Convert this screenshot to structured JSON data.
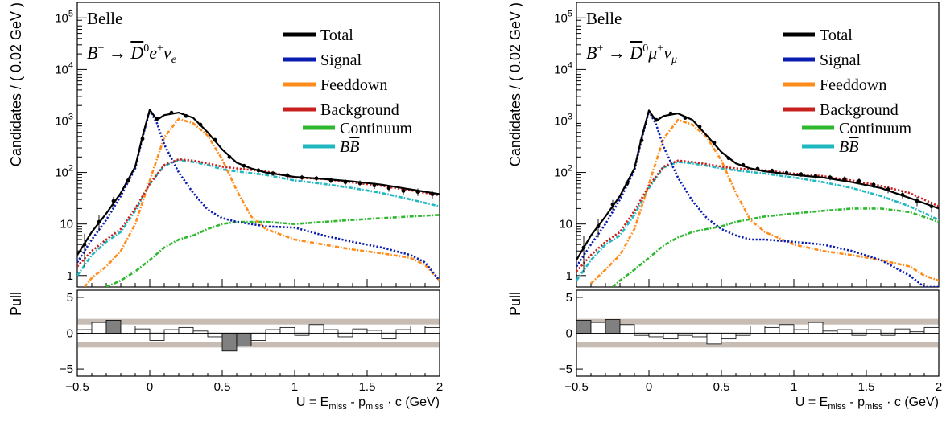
{
  "chart_data": [
    {
      "type": "line",
      "experiment": "Belle",
      "decay": {
        "lead": "B",
        "lead_sup": "+",
        "arrow": "→",
        "dmeson": "D",
        "dmeson_sup": "0",
        "lepton": "e",
        "lepton_sup": "+",
        "nu": "ν",
        "nu_sub": "e"
      },
      "ylabel": "Candidates / ( 0.02 GeV )",
      "pull_label": "Pull",
      "xlabel": {
        "u": "U = E",
        "emiss": "miss",
        "mid": " - p",
        "pmiss": "miss",
        "end": " · c (GeV)"
      },
      "xlim": [
        -0.5,
        2.0
      ],
      "ylim_log": [
        0.6,
        200000
      ],
      "y_scale": "log",
      "pull_ylim": [
        -6,
        6
      ],
      "pull_band": 2,
      "x_ticks": [
        "-0.5",
        "0",
        "0.5",
        "1",
        "1.5",
        "2"
      ],
      "y_ticks": [
        {
          "v": 1,
          "label": "1"
        },
        {
          "v": 10,
          "label": "10"
        },
        {
          "v": 100,
          "label": "10",
          "exp": "2"
        },
        {
          "v": 1000,
          "label": "10",
          "exp": "3"
        },
        {
          "v": 10000,
          "label": "10",
          "exp": "4"
        },
        {
          "v": 100000,
          "label": "10",
          "exp": "5"
        }
      ],
      "pull_ticks": [
        {
          "v": 5,
          "label": "5"
        },
        {
          "v": 0,
          "label": "0"
        },
        {
          "v": -5,
          "label": "−5"
        }
      ],
      "legend": [
        {
          "name": "Total",
          "color": "#000000"
        },
        {
          "name": "Signal",
          "color": "#0b1cb0"
        },
        {
          "name": "Feeddown",
          "color": "#ff8c1a"
        },
        {
          "name": "Background",
          "color": "#c8201e"
        },
        {
          "name": "Continuum",
          "color": "#2db82d"
        },
        {
          "name": "BB",
          "overline": true,
          "color": "#20b8c0"
        }
      ],
      "series": [
        {
          "name": "Total",
          "color": "#000000",
          "style": "solid",
          "x": [
            -0.5,
            -0.4,
            -0.3,
            -0.2,
            -0.1,
            -0.05,
            0.0,
            0.05,
            0.1,
            0.2,
            0.3,
            0.4,
            0.5,
            0.6,
            0.7,
            0.8,
            1.0,
            1.2,
            1.4,
            1.6,
            1.8,
            2.0
          ],
          "y": [
            2.5,
            7,
            16,
            40,
            130,
            500,
            1650,
            1050,
            1300,
            1450,
            1150,
            600,
            280,
            155,
            120,
            100,
            82,
            75,
            67,
            58,
            47,
            38
          ]
        },
        {
          "name": "Signal",
          "color": "#0b1cb0",
          "style": "dotted",
          "x": [
            -0.5,
            -0.4,
            -0.3,
            -0.2,
            -0.1,
            -0.05,
            0.0,
            0.05,
            0.1,
            0.2,
            0.3,
            0.4,
            0.5,
            0.6,
            0.7,
            0.8,
            1.0,
            1.2,
            1.4,
            1.6,
            1.8,
            1.9,
            2.0
          ],
          "y": [
            1.8,
            5,
            12,
            35,
            120,
            480,
            1600,
            900,
            350,
            100,
            40,
            19,
            13,
            11,
            10,
            9,
            8.5,
            6,
            4.5,
            3.5,
            2.5,
            1.8,
            0.8
          ]
        },
        {
          "name": "Feeddown",
          "color": "#ff8c1a",
          "style": "dashdot",
          "x": [
            -0.45,
            -0.4,
            -0.3,
            -0.2,
            -0.1,
            0.0,
            0.1,
            0.2,
            0.3,
            0.4,
            0.5,
            0.6,
            0.7,
            0.8,
            1.0,
            1.2,
            1.4,
            1.6,
            1.8,
            1.9,
            2.0
          ],
          "y": [
            0.6,
            0.9,
            1.5,
            3,
            10,
            70,
            480,
            1100,
            900,
            520,
            180,
            45,
            14,
            8,
            5,
            4,
            3.2,
            2.7,
            2.2,
            1.6,
            0.8
          ]
        },
        {
          "name": "Background",
          "color": "#c8201e",
          "style": "dotted",
          "x": [
            -0.5,
            -0.4,
            -0.3,
            -0.2,
            -0.1,
            0.0,
            0.1,
            0.2,
            0.3,
            0.4,
            0.5,
            0.6,
            0.8,
            1.0,
            1.2,
            1.4,
            1.6,
            1.8,
            2.0
          ],
          "y": [
            1.5,
            3,
            5,
            8,
            20,
            60,
            140,
            180,
            170,
            150,
            130,
            120,
            105,
            80,
            75,
            64,
            55,
            45,
            36
          ]
        },
        {
          "name": "Continuum",
          "color": "#2db82d",
          "style": "dashdot",
          "x": [
            -0.3,
            -0.2,
            -0.1,
            0.0,
            0.1,
            0.2,
            0.3,
            0.4,
            0.5,
            0.6,
            0.8,
            1.0,
            1.2,
            1.4,
            1.6,
            1.8,
            2.0
          ],
          "y": [
            0.6,
            0.8,
            1.2,
            2,
            3.5,
            5,
            6,
            8,
            10,
            11,
            11,
            10,
            11,
            12,
            13,
            14,
            15
          ]
        },
        {
          "name": "BB",
          "color": "#20b8c0",
          "style": "dashdot",
          "x": [
            -0.5,
            -0.4,
            -0.3,
            -0.2,
            -0.1,
            0.0,
            0.1,
            0.2,
            0.3,
            0.4,
            0.5,
            0.6,
            0.8,
            1.0,
            1.2,
            1.4,
            1.6,
            1.8,
            2.0
          ],
          "y": [
            1,
            2.5,
            4.5,
            7,
            18,
            60,
            135,
            175,
            160,
            140,
            115,
            105,
            90,
            70,
            60,
            50,
            40,
            30,
            22
          ]
        }
      ],
      "data_points": {
        "x": [
          -0.45,
          -0.35,
          -0.25,
          -0.15,
          -0.05,
          0.05,
          0.15,
          0.25,
          0.35,
          0.45,
          0.55,
          0.65,
          0.75,
          0.85,
          0.95,
          1.05,
          1.15,
          1.25,
          1.35,
          1.45,
          1.55,
          1.65,
          1.75,
          1.85,
          1.95
        ],
        "y": [
          4,
          11,
          28,
          70,
          450,
          1100,
          1450,
          1250,
          850,
          430,
          200,
          135,
          110,
          96,
          88,
          80,
          77,
          71,
          65,
          62,
          56,
          50,
          44,
          42,
          38
        ]
      },
      "pull": {
        "x": [
          -0.45,
          -0.35,
          -0.25,
          -0.15,
          -0.05,
          0.05,
          0.15,
          0.25,
          0.35,
          0.45,
          0.55,
          0.65,
          0.75,
          0.85,
          0.95,
          1.05,
          1.15,
          1.25,
          1.35,
          1.45,
          1.55,
          1.65,
          1.75,
          1.85,
          1.95
        ],
        "values": [
          0.5,
          1.5,
          1.8,
          1.0,
          0.6,
          -1.0,
          0.5,
          0.8,
          0.3,
          -0.5,
          -2.5,
          -1.8,
          -1.0,
          0.5,
          0.8,
          -0.3,
          1.2,
          0.5,
          -0.5,
          0.6,
          0.4,
          -0.8,
          0.5,
          1.0,
          0.8
        ]
      }
    },
    {
      "type": "line",
      "experiment": "Belle",
      "decay": {
        "lead": "B",
        "lead_sup": "+",
        "arrow": "→",
        "dmeson": "D",
        "dmeson_sup": "0",
        "lepton": "μ",
        "lepton_sup": "+",
        "nu": "ν",
        "nu_sub": "μ"
      },
      "ylabel": "Candidates / ( 0.02 GeV )",
      "pull_label": "Pull",
      "xlabel": {
        "u": "U = E",
        "emiss": "miss",
        "mid": " - p",
        "pmiss": "miss",
        "end": " · c (GeV)"
      },
      "xlim": [
        -0.5,
        2.0
      ],
      "ylim_log": [
        0.6,
        200000
      ],
      "y_scale": "log",
      "pull_ylim": [
        -6,
        6
      ],
      "pull_band": 2,
      "x_ticks": [
        "-0.5",
        "0",
        "0.5",
        "1",
        "1.5",
        "2"
      ],
      "y_ticks": [
        {
          "v": 1,
          "label": "1"
        },
        {
          "v": 10,
          "label": "10"
        },
        {
          "v": 100,
          "label": "10",
          "exp": "2"
        },
        {
          "v": 1000,
          "label": "10",
          "exp": "3"
        },
        {
          "v": 10000,
          "label": "10",
          "exp": "4"
        },
        {
          "v": 100000,
          "label": "10",
          "exp": "5"
        }
      ],
      "pull_ticks": [
        {
          "v": 5,
          "label": "5"
        },
        {
          "v": 0,
          "label": "0"
        },
        {
          "v": -5,
          "label": "−5"
        }
      ],
      "legend": [
        {
          "name": "Total",
          "color": "#000000"
        },
        {
          "name": "Signal",
          "color": "#0b1cb0"
        },
        {
          "name": "Feeddown",
          "color": "#ff8c1a"
        },
        {
          "name": "Background",
          "color": "#c8201e"
        },
        {
          "name": "Continuum",
          "color": "#2db82d"
        },
        {
          "name": "BB",
          "overline": true,
          "color": "#20b8c0"
        }
      ],
      "series": [
        {
          "name": "Total",
          "color": "#000000",
          "style": "solid",
          "x": [
            -0.5,
            -0.4,
            -0.3,
            -0.2,
            -0.1,
            -0.05,
            0.0,
            0.05,
            0.1,
            0.2,
            0.3,
            0.4,
            0.5,
            0.6,
            0.7,
            0.8,
            1.0,
            1.2,
            1.4,
            1.6,
            1.8,
            2.0
          ],
          "y": [
            2,
            6,
            14,
            35,
            120,
            480,
            1600,
            1000,
            1250,
            1400,
            1050,
            520,
            250,
            150,
            120,
            105,
            90,
            80,
            65,
            50,
            32,
            20
          ]
        },
        {
          "name": "Signal",
          "color": "#0b1cb0",
          "style": "dotted",
          "x": [
            -0.5,
            -0.4,
            -0.3,
            -0.2,
            -0.1,
            -0.05,
            0.0,
            0.05,
            0.1,
            0.2,
            0.3,
            0.4,
            0.5,
            0.6,
            0.7,
            0.8,
            1.0,
            1.2,
            1.4,
            1.6,
            1.8,
            1.9,
            2.0
          ],
          "y": [
            1.5,
            4,
            10,
            30,
            110,
            450,
            1550,
            850,
            320,
            80,
            28,
            13,
            8,
            6,
            5,
            5,
            4.5,
            4,
            3,
            2,
            1,
            0.6,
            0.5
          ]
        },
        {
          "name": "Feeddown",
          "color": "#ff8c1a",
          "style": "dashdot",
          "x": [
            -0.4,
            -0.3,
            -0.2,
            -0.1,
            0.0,
            0.1,
            0.2,
            0.3,
            0.4,
            0.5,
            0.6,
            0.7,
            0.8,
            1.0,
            1.2,
            1.4,
            1.6,
            1.8,
            1.9,
            2.0
          ],
          "y": [
            0.7,
            1.3,
            2.5,
            8,
            60,
            450,
            1050,
            850,
            480,
            170,
            40,
            12,
            7,
            4,
            3,
            2.5,
            2,
            1.5,
            1,
            0.8
          ]
        },
        {
          "name": "Background",
          "color": "#c8201e",
          "style": "dotted",
          "x": [
            -0.5,
            -0.4,
            -0.3,
            -0.2,
            -0.1,
            0.0,
            0.1,
            0.2,
            0.3,
            0.4,
            0.5,
            0.6,
            0.8,
            1.0,
            1.2,
            1.4,
            1.6,
            1.8,
            2.0
          ],
          "y": [
            1.2,
            2.5,
            4.5,
            7,
            18,
            55,
            130,
            170,
            160,
            145,
            130,
            120,
            110,
            95,
            85,
            70,
            55,
            40,
            22
          ]
        },
        {
          "name": "Continuum",
          "color": "#2db82d",
          "style": "dashdot",
          "x": [
            -0.25,
            -0.2,
            -0.1,
            0.0,
            0.1,
            0.2,
            0.3,
            0.4,
            0.5,
            0.6,
            0.8,
            1.0,
            1.2,
            1.4,
            1.6,
            1.8,
            2.0
          ],
          "y": [
            0.6,
            0.8,
            1.3,
            2.2,
            3.8,
            5.5,
            7,
            8,
            9,
            11,
            14,
            16,
            18,
            20,
            20,
            17,
            11
          ]
        },
        {
          "name": "BB",
          "color": "#20b8c0",
          "style": "dashdot",
          "x": [
            -0.5,
            -0.4,
            -0.3,
            -0.2,
            -0.1,
            0.0,
            0.1,
            0.2,
            0.3,
            0.4,
            0.5,
            0.6,
            0.8,
            1.0,
            1.2,
            1.4,
            1.6,
            1.8,
            2.0
          ],
          "y": [
            0.8,
            2,
            4,
            6,
            15,
            50,
            125,
            160,
            150,
            135,
            120,
            110,
            95,
            80,
            65,
            50,
            35,
            22,
            12
          ]
        }
      ],
      "data_points": {
        "x": [
          -0.45,
          -0.35,
          -0.25,
          -0.15,
          -0.05,
          0.05,
          0.15,
          0.25,
          0.35,
          0.45,
          0.55,
          0.65,
          0.75,
          0.85,
          0.95,
          1.05,
          1.15,
          1.25,
          1.35,
          1.45,
          1.55,
          1.65,
          1.75,
          1.85,
          1.95
        ],
        "y": [
          3.5,
          9,
          24,
          62,
          420,
          1050,
          1400,
          1150,
          780,
          380,
          190,
          140,
          118,
          108,
          98,
          92,
          85,
          80,
          75,
          68,
          58,
          47,
          37,
          28,
          22
        ]
      },
      "pull": {
        "x": [
          -0.45,
          -0.35,
          -0.25,
          -0.15,
          -0.05,
          0.05,
          0.15,
          0.25,
          0.35,
          0.45,
          0.55,
          0.65,
          0.75,
          0.85,
          0.95,
          1.05,
          1.15,
          1.25,
          1.35,
          1.45,
          1.55,
          1.65,
          1.75,
          1.85,
          1.95
        ],
        "values": [
          1.8,
          1.5,
          1.9,
          1.2,
          -0.3,
          -0.5,
          -0.8,
          -0.3,
          -0.5,
          -1.5,
          -0.8,
          -0.3,
          1.0,
          0.8,
          1.2,
          0.5,
          1.5,
          0.3,
          0.5,
          -0.3,
          0.5,
          -0.3,
          0.6,
          0.2,
          0.8
        ]
      }
    }
  ]
}
